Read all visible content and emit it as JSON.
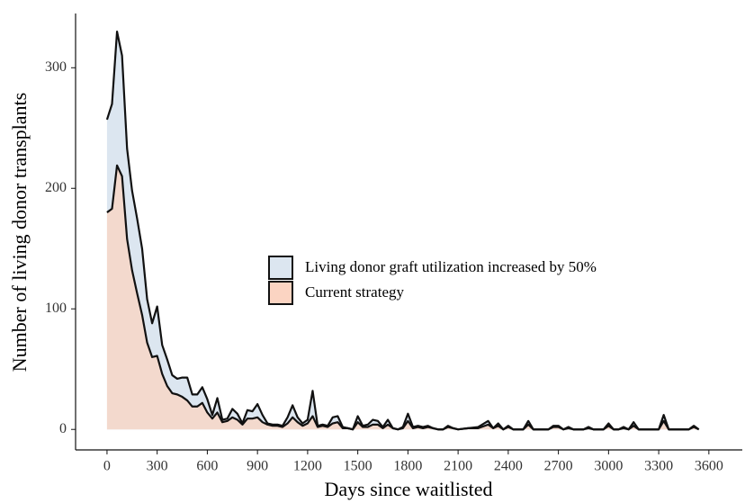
{
  "chart_data": {
    "type": "area",
    "x_label": "Days since waitlisted",
    "y_label": "Number of living donor transplants",
    "x": [
      0,
      30,
      60,
      90,
      120,
      150,
      180,
      210,
      240,
      270,
      300,
      330,
      360,
      390,
      420,
      450,
      480,
      510,
      540,
      570,
      600,
      630,
      660,
      690,
      720,
      750,
      780,
      810,
      840,
      870,
      900,
      930,
      960,
      990,
      1020,
      1050,
      1080,
      1110,
      1140,
      1170,
      1200,
      1230,
      1260,
      1290,
      1320,
      1350,
      1380,
      1410,
      1440,
      1470,
      1500,
      1530,
      1560,
      1590,
      1620,
      1650,
      1680,
      1710,
      1740,
      1770,
      1800,
      1830,
      1860,
      1890,
      1920,
      1950,
      1980,
      2010,
      2040,
      2070,
      2100,
      2160,
      2220,
      2280,
      2310,
      2340,
      2370,
      2400,
      2430,
      2490,
      2520,
      2550,
      2640,
      2670,
      2700,
      2730,
      2760,
      2790,
      2850,
      2880,
      2910,
      2970,
      3000,
      3030,
      3060,
      3090,
      3120,
      3150,
      3180,
      3300,
      3330,
      3360,
      3480,
      3510,
      3540
    ],
    "series": [
      {
        "name": "Living donor graft utilization increased by 50%",
        "color": "#dce6f0",
        "values": [
          257,
          270,
          330,
          310,
          233,
          198,
          175,
          150,
          108,
          88,
          102,
          70,
          58,
          45,
          42,
          43,
          43,
          29,
          29,
          35,
          25,
          12,
          26,
          8,
          9,
          17,
          13,
          5,
          16,
          15,
          21,
          12,
          5,
          4,
          4,
          3,
          10,
          20,
          10,
          5,
          8,
          32,
          3,
          4,
          3,
          10,
          11,
          2,
          1,
          0,
          11,
          3,
          4,
          8,
          7,
          2,
          8,
          1,
          0,
          2,
          13,
          2,
          3,
          2,
          3,
          1,
          0,
          0,
          3,
          1,
          0,
          1,
          2,
          7,
          1,
          5,
          0,
          3,
          0,
          0,
          7,
          0,
          0,
          3,
          3,
          0,
          2,
          0,
          0,
          2,
          0,
          0,
          5,
          0,
          0,
          2,
          0,
          6,
          0,
          0,
          12,
          0,
          0,
          3,
          0
        ]
      },
      {
        "name": "Current strategy",
        "color": "#fbd4c2",
        "values": [
          180,
          183,
          219,
          210,
          158,
          132,
          113,
          95,
          72,
          60,
          61,
          46,
          36,
          30,
          29,
          27,
          24,
          19,
          19,
          22,
          14,
          9,
          14,
          6,
          7,
          10,
          8,
          4,
          9,
          9,
          10,
          6,
          4,
          3,
          3,
          2,
          5,
          10,
          6,
          3,
          5,
          11,
          2,
          3,
          2,
          5,
          6,
          1,
          1,
          0,
          6,
          2,
          2,
          4,
          4,
          1,
          4,
          1,
          0,
          1,
          7,
          1,
          2,
          1,
          2,
          1,
          0,
          0,
          2,
          1,
          0,
          1,
          1,
          4,
          1,
          3,
          0,
          2,
          0,
          0,
          4,
          0,
          0,
          2,
          2,
          0,
          1,
          0,
          0,
          1,
          0,
          0,
          3,
          0,
          0,
          1,
          0,
          3,
          0,
          0,
          7,
          0,
          0,
          2,
          0
        ]
      }
    ],
    "xlim": [
      -188,
      3800
    ],
    "xticks": [
      0,
      300,
      600,
      900,
      1200,
      1500,
      1800,
      2100,
      2400,
      2700,
      3000,
      3300,
      3600
    ],
    "ylim": [
      -17,
      345
    ],
    "yticks": [
      0,
      100,
      200,
      300
    ],
    "legend": "center"
  }
}
